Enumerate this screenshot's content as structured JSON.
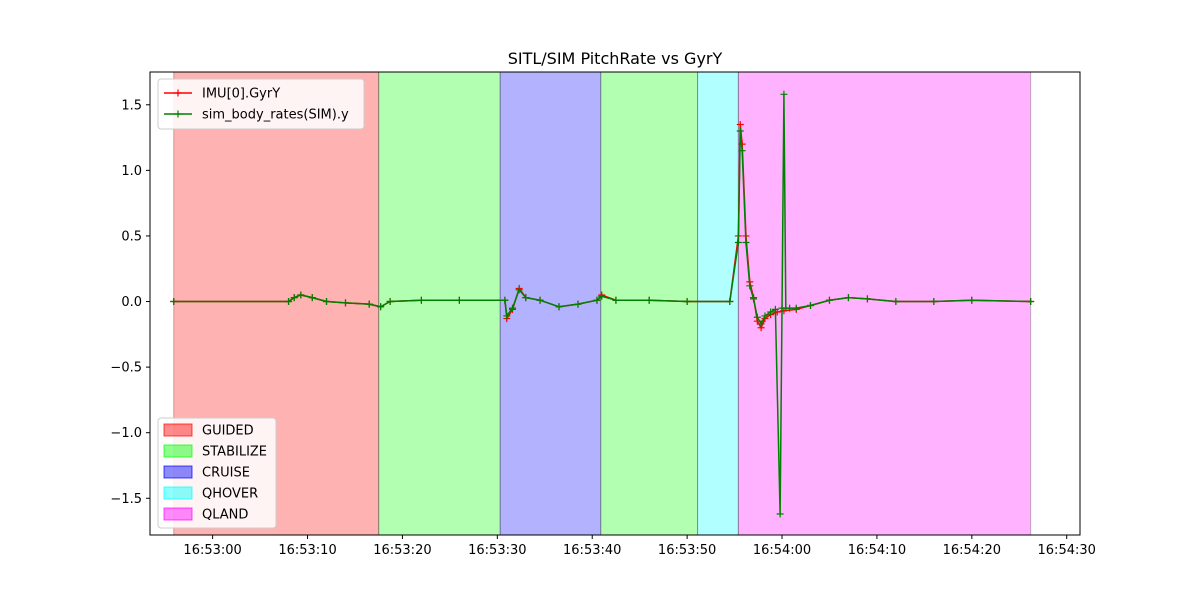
{
  "chart_data": {
    "type": "line",
    "title": "SITL/SIM PitchRate vs GyrY",
    "xlabel": "",
    "ylabel": "",
    "grid": false,
    "x_unit": "time of day (HH:MM:SS)",
    "xlim": [
      "16:52:53.4",
      "16:54:31.4"
    ],
    "ylim": [
      -1.78,
      1.75
    ],
    "xticks": [
      "16:53:00",
      "16:53:10",
      "16:53:20",
      "16:53:30",
      "16:53:40",
      "16:53:50",
      "16:54:00",
      "16:54:10",
      "16:54:20",
      "16:54:30"
    ],
    "yticks": [
      -1.5,
      -1.0,
      -0.5,
      0.0,
      0.5,
      1.0,
      1.5
    ],
    "ytick_labels": [
      "−1.5",
      "−1.0",
      "−0.5",
      "0.0",
      "0.5",
      "1.0",
      "1.5"
    ],
    "series_legend_placement": "upper-left",
    "modes_legend_placement": "lower-left",
    "mode_spans": [
      {
        "mode": "GUIDED",
        "start": "16:52:55.9",
        "end": "16:53:17.5",
        "color": "#ff0000"
      },
      {
        "mode": "STABILIZE",
        "start": "16:53:17.5",
        "end": "16:53:30.3",
        "color": "#00ff00"
      },
      {
        "mode": "CRUISE",
        "start": "16:53:30.3",
        "end": "16:53:40.9",
        "color": "#0000ff"
      },
      {
        "mode": "STABILIZE",
        "start": "16:53:40.9",
        "end": "16:53:51.1",
        "color": "#00ff00"
      },
      {
        "mode": "QHOVER",
        "start": "16:53:51.1",
        "end": "16:53:55.4",
        "color": "#00ffff"
      },
      {
        "mode": "QLAND",
        "start": "16:53:55.4",
        "end": "16:54:26.2",
        "color": "#ff00ff"
      }
    ],
    "modes_legend": [
      {
        "label": "GUIDED",
        "color": "#ff0000"
      },
      {
        "label": "STABILIZE",
        "color": "#00ff00"
      },
      {
        "label": "CRUISE",
        "color": "#0000ff"
      },
      {
        "label": "QHOVER",
        "color": "#00ffff"
      },
      {
        "label": "QLAND",
        "color": "#ff00ff"
      }
    ],
    "series": [
      {
        "name": "IMU[0].GyrY",
        "color": "#ff0000",
        "x": [
          "16:52:55.9",
          "16:53:08.0",
          "16:53:08.6",
          "16:53:09.3",
          "16:53:10.5",
          "16:53:12.0",
          "16:53:14.0",
          "16:53:16.5",
          "16:53:17.7",
          "16:53:18.7",
          "16:53:22.0",
          "16:53:26.0",
          "16:53:30.8",
          "16:53:31.0",
          "16:53:31.6",
          "16:53:32.3",
          "16:53:33.0",
          "16:53:34.5",
          "16:53:36.5",
          "16:53:38.5",
          "16:53:40.5",
          "16:53:41.0",
          "16:53:42.5",
          "16:53:46.0",
          "16:53:50.0",
          "16:53:54.5",
          "16:53:55.4",
          "16:53:55.6",
          "16:53:55.8",
          "16:53:56.2",
          "16:53:56.6",
          "16:53:57.0",
          "16:53:57.4",
          "16:53:57.8",
          "16:53:58.2",
          "16:53:58.8",
          "16:53:59.5",
          "16:54:00.2",
          "16:54:01.5",
          "16:54:03.0",
          "16:54:05.0",
          "16:54:07.0",
          "16:54:09.0",
          "16:54:12.0",
          "16:54:16.0",
          "16:54:20.0",
          "16:54:26.2"
        ],
        "y": [
          0.0,
          0.0,
          0.03,
          0.05,
          0.03,
          0.0,
          -0.01,
          -0.02,
          -0.04,
          0.0,
          0.01,
          0.01,
          0.01,
          -0.13,
          -0.06,
          0.1,
          0.03,
          0.01,
          -0.04,
          -0.02,
          0.01,
          0.05,
          0.01,
          0.01,
          0.0,
          0.0,
          0.5,
          1.35,
          1.2,
          0.5,
          0.15,
          0.03,
          -0.15,
          -0.2,
          -0.13,
          -0.1,
          -0.08,
          -0.07,
          -0.06,
          -0.03,
          0.01,
          0.03,
          0.02,
          0.0,
          0.0,
          0.01,
          0.0
        ]
      },
      {
        "name": "sim_body_rates(SIM).y",
        "color": "#008000",
        "x": [
          "16:52:55.9",
          "16:53:08.0",
          "16:53:08.6",
          "16:53:09.3",
          "16:53:10.5",
          "16:53:12.0",
          "16:53:14.0",
          "16:53:16.5",
          "16:53:17.7",
          "16:53:18.7",
          "16:53:22.0",
          "16:53:26.0",
          "16:53:30.8",
          "16:53:31.0",
          "16:53:31.6",
          "16:53:32.3",
          "16:53:33.0",
          "16:53:34.5",
          "16:53:36.5",
          "16:53:38.5",
          "16:53:40.5",
          "16:53:41.0",
          "16:53:42.5",
          "16:53:46.0",
          "16:53:50.0",
          "16:53:54.5",
          "16:53:55.4",
          "16:53:55.6",
          "16:53:55.8",
          "16:53:56.2",
          "16:53:56.6",
          "16:53:57.0",
          "16:53:57.4",
          "16:53:57.8",
          "16:53:58.2",
          "16:53:58.8",
          "16:53:59.3",
          "16:53:59.8",
          "16:54:00.0",
          "16:54:00.2",
          "16:54:00.4",
          "16:54:00.8",
          "16:54:01.5",
          "16:54:03.0",
          "16:54:05.0",
          "16:54:07.0",
          "16:54:09.0",
          "16:54:12.0",
          "16:54:16.0",
          "16:54:20.0",
          "16:54:26.2"
        ],
        "y": [
          0.0,
          0.0,
          0.03,
          0.05,
          0.03,
          0.0,
          -0.01,
          -0.02,
          -0.04,
          0.0,
          0.01,
          0.01,
          0.01,
          -0.11,
          -0.05,
          0.09,
          0.03,
          0.01,
          -0.04,
          -0.02,
          0.01,
          0.04,
          0.01,
          0.01,
          0.0,
          0.0,
          0.45,
          1.3,
          1.15,
          0.45,
          0.12,
          0.02,
          -0.12,
          -0.17,
          -0.11,
          -0.08,
          -0.06,
          -1.62,
          -0.05,
          1.58,
          -0.05,
          -0.05,
          -0.05,
          -0.03,
          0.01,
          0.03,
          0.02,
          0.0,
          0.0,
          0.01,
          0.0
        ]
      }
    ]
  }
}
